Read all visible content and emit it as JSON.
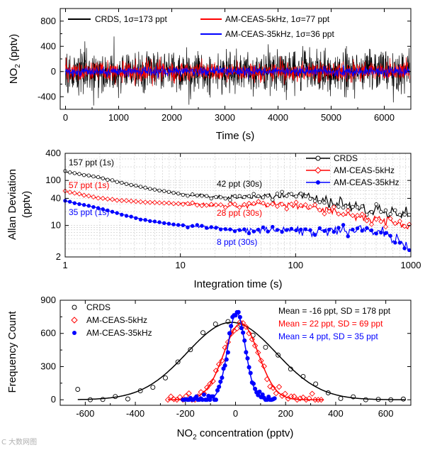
{
  "watermark": "C 大数网图",
  "chart_data": [
    {
      "type": "line",
      "ylabel_main": "NO",
      "ylabel_sub": "2",
      "ylabel_rest": " (pptv)",
      "xlabel": "Time (s)",
      "xlim": [
        -100,
        6500
      ],
      "ylim": [
        -600,
        1000
      ],
      "xticks": [
        0,
        1000,
        2000,
        3000,
        4000,
        5000,
        6000
      ],
      "yticks": [
        -400,
        0,
        400,
        800
      ],
      "series": [
        {
          "name": "CRDS, 1σ=173 ppt",
          "color": "#000000",
          "sd": 173,
          "n": 1300
        },
        {
          "name": "AM-CEAS-5kHz, 1σ=77 ppt",
          "color": "#ff0000",
          "sd": 77,
          "n": 1300
        },
        {
          "name": "AM-CEAS-35kHz, 1σ=36 ppt",
          "color": "#0000ff",
          "sd": 36,
          "n": 1300
        }
      ]
    },
    {
      "type": "line",
      "scale": "log-log",
      "ylabel": "Allan Deviation",
      "ylabel2": "(pptv)",
      "xlabel": "Integration time (s)",
      "xlim": [
        1,
        1000
      ],
      "ylim": [
        2,
        400
      ],
      "xticks": [
        1,
        10,
        100,
        1000
      ],
      "yticks": [
        2,
        10,
        40,
        100,
        400
      ],
      "grid": true,
      "series": [
        {
          "name": "CRDS",
          "color": "#000000",
          "marker": "circle-open",
          "x": [
            1,
            2,
            3,
            5,
            10,
            20,
            30,
            50,
            100,
            150,
            200,
            300,
            500,
            700,
            1000
          ],
          "y": [
            157,
            115,
            90,
            68,
            50,
            43,
            42,
            45,
            48,
            40,
            33,
            27,
            22,
            19,
            17
          ]
        },
        {
          "name": "AM-CEAS-5kHz",
          "color": "#ff0000",
          "marker": "diamond-open",
          "x": [
            1,
            2,
            3,
            5,
            10,
            20,
            30,
            50,
            100,
            150,
            200,
            300,
            500,
            700,
            1000
          ],
          "y": [
            57,
            40,
            36,
            33,
            30,
            28,
            28,
            30,
            28,
            24,
            20,
            16,
            13,
            11,
            10
          ]
        },
        {
          "name": "AM-CEAS-35kHz",
          "color": "#0000ff",
          "marker": "circle-filled",
          "x": [
            1,
            2,
            3,
            5,
            10,
            20,
            30,
            50,
            100,
            150,
            200,
            300,
            500,
            700,
            1000
          ],
          "y": [
            35,
            24,
            18,
            13,
            10,
            9,
            8,
            8,
            8,
            7.5,
            7.5,
            8,
            7,
            5,
            3
          ]
        }
      ],
      "annotations": [
        {
          "text": "157 ppt (1s)",
          "color": "#000000"
        },
        {
          "text": "57 ppt (1s)",
          "color": "#ff0000"
        },
        {
          "text": "35 ppt (1s)",
          "color": "#0000ff"
        },
        {
          "text": "42 ppt (30s)",
          "color": "#000000"
        },
        {
          "text": "28 ppt (30s)",
          "color": "#ff0000"
        },
        {
          "text": "8 ppt (30s)",
          "color": "#0000ff"
        }
      ]
    },
    {
      "type": "scatter",
      "ylabel": "Frequency Count",
      "xlabel_main": "NO",
      "xlabel_sub": "2",
      "xlabel_rest": " concentration (pptv)",
      "xlim": [
        -700,
        700
      ],
      "ylim": [
        -50,
        900
      ],
      "xticks": [
        -600,
        -400,
        -200,
        0,
        200,
        400,
        600
      ],
      "yticks": [
        0,
        300,
        600,
        900
      ],
      "series": [
        {
          "name": "CRDS",
          "color": "#000000",
          "marker": "circle-open",
          "mean": -16,
          "sd": 178,
          "peak": 700,
          "range": [
            -630,
            680
          ],
          "step": 50,
          "fit_label": "Mean = -16 ppt, SD = 178 ppt"
        },
        {
          "name": "AM-CEAS-5kHz",
          "color": "#ff0000",
          "marker": "diamond-open",
          "mean": 22,
          "sd": 69,
          "peak": 690,
          "range": [
            -270,
            350
          ],
          "step": 12,
          "fit_label": "Mean = 22 ppt, SD = 69 ppt"
        },
        {
          "name": "AM-CEAS-35kHz",
          "color": "#0000ff",
          "marker": "circle-filled",
          "mean": 4,
          "sd": 35,
          "peak": 790,
          "range": [
            -210,
            160
          ],
          "step": 6,
          "fit_label": "Mean = 4 ppt, SD = 35 ppt"
        }
      ]
    }
  ]
}
